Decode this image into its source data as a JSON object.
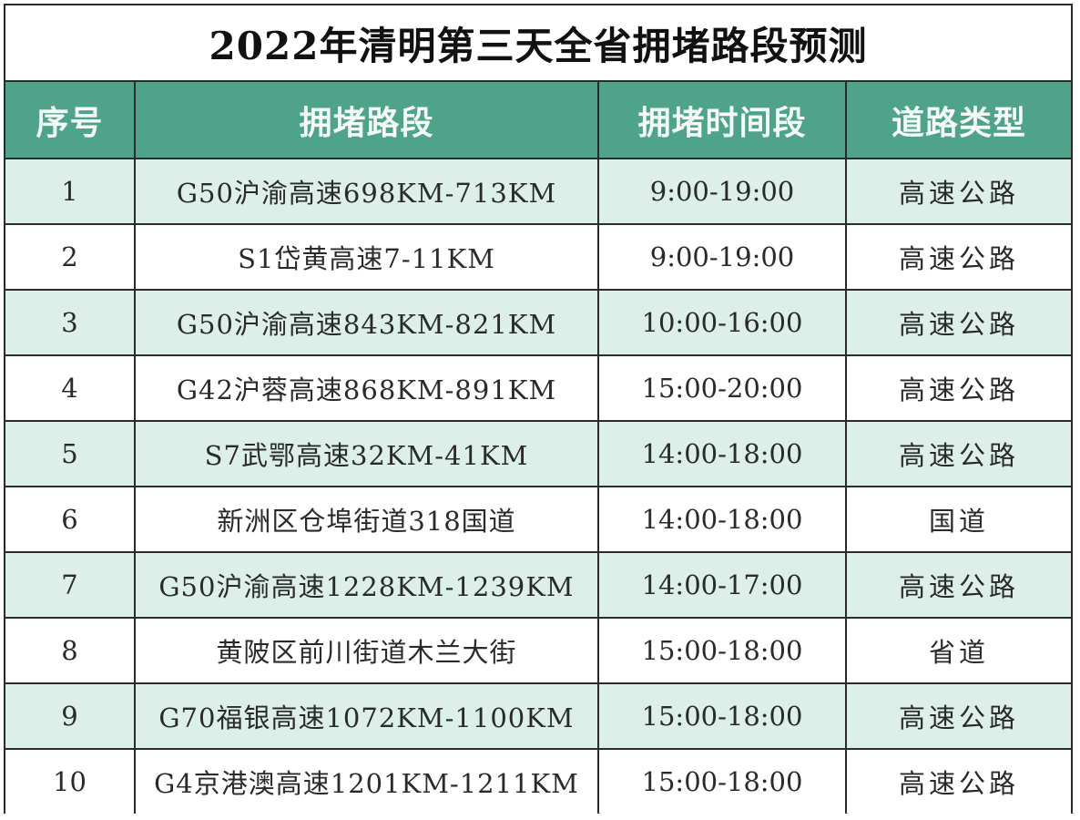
{
  "title": "2022年清明第三天全省拥堵路段预测",
  "colors": {
    "header_bg": "#4fa38a",
    "header_text": "#f4fbf7",
    "shaded_row_bg": "#dcefe9",
    "plain_row_bg": "#ffffff",
    "border": "#2b2b2b"
  },
  "table": {
    "headers": [
      "序号",
      "拥堵路段",
      "拥堵时间段",
      "道路类型"
    ],
    "rows": [
      {
        "index": "1",
        "segment": "G50沪渝高速698KM-713KM",
        "time": "9:00-19:00",
        "type": "高速公路"
      },
      {
        "index": "2",
        "segment": "S1岱黄高速7-11KM",
        "time": "9:00-19:00",
        "type": "高速公路"
      },
      {
        "index": "3",
        "segment": "G50沪渝高速843KM-821KM",
        "time": "10:00-16:00",
        "type": "高速公路"
      },
      {
        "index": "4",
        "segment": "G42沪蓉高速868KM-891KM",
        "time": "15:00-20:00",
        "type": "高速公路"
      },
      {
        "index": "5",
        "segment": "S7武鄂高速32KM-41KM",
        "time": "14:00-18:00",
        "type": "高速公路"
      },
      {
        "index": "6",
        "segment": "新洲区仓埠街道318国道",
        "time": "14:00-18:00",
        "type": "国道"
      },
      {
        "index": "7",
        "segment": "G50沪渝高速1228KM-1239KM",
        "time": "14:00-17:00",
        "type": "高速公路"
      },
      {
        "index": "8",
        "segment": "黄陂区前川街道木兰大街",
        "time": "15:00-18:00",
        "type": "省道"
      },
      {
        "index": "9",
        "segment": "G70福银高速1072KM-1100KM",
        "time": "15:00-18:00",
        "type": "高速公路"
      },
      {
        "index": "10",
        "segment": "G4京港澳高速1201KM-1211KM",
        "time": "15:00-18:00",
        "type": "高速公路"
      }
    ]
  }
}
